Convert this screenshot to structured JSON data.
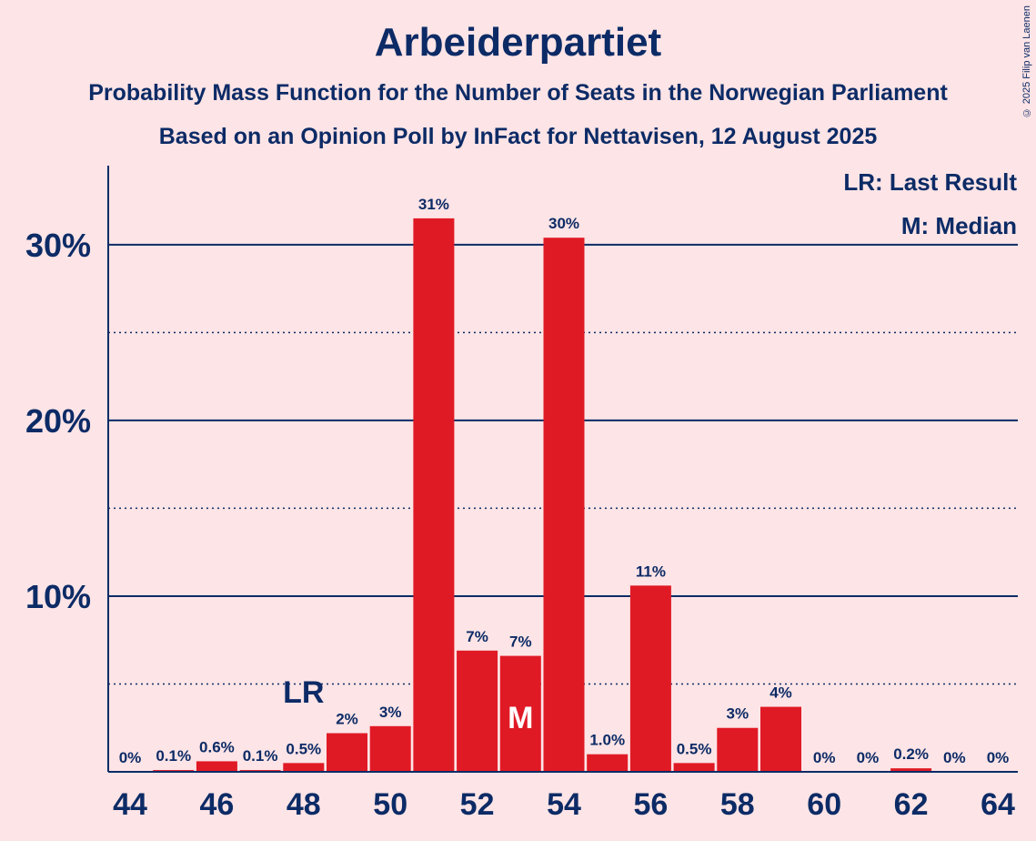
{
  "chart_data": {
    "type": "bar",
    "title": "Arbeiderpartiet",
    "subtitle": "Probability Mass Function for the Number of Seats in the Norwegian Parliament",
    "subtitle2": "Based on an Opinion Poll by InFact for Nettavisen, 12 August 2025",
    "copyright": "© 2025 Filip van Laenen",
    "legend": {
      "lr": "LR: Last Result",
      "median": "M: Median",
      "placement": "top-right"
    },
    "ylim": [
      0,
      34.5
    ],
    "y_ticks": [
      {
        "value": 10,
        "label": "10%"
      },
      {
        "value": 20,
        "label": "20%"
      },
      {
        "value": 30,
        "label": "30%"
      }
    ],
    "y_minor_ticks": [
      5,
      15,
      25
    ],
    "x_tick_labels": [
      "44",
      "46",
      "48",
      "50",
      "52",
      "54",
      "56",
      "58",
      "60",
      "62",
      "64"
    ],
    "categories": [
      44,
      45,
      46,
      47,
      48,
      49,
      50,
      51,
      52,
      53,
      54,
      55,
      56,
      57,
      58,
      59,
      60,
      61,
      62,
      63,
      64
    ],
    "values": [
      0,
      0.1,
      0.6,
      0.1,
      0.5,
      2.2,
      2.6,
      31.5,
      6.9,
      6.6,
      30.4,
      1.0,
      10.6,
      0.5,
      2.5,
      3.7,
      0,
      0,
      0.2,
      0,
      0
    ],
    "data_labels": [
      "0%",
      "0.1%",
      "0.6%",
      "0.1%",
      "0.5%",
      "2%",
      "3%",
      "31%",
      "7%",
      "7%",
      "30%",
      "1.0%",
      "11%",
      "0.5%",
      "3%",
      "4%",
      "0%",
      "0%",
      "0.2%",
      "0%",
      "0%"
    ],
    "last_result": {
      "seat": 48,
      "label": "LR"
    },
    "median": {
      "seat": 53,
      "label": "M"
    },
    "colors": {
      "background": "#FDE4E6",
      "bar": "#E01A25",
      "text": "#0C2B66",
      "grid": "#0C2B66"
    }
  }
}
